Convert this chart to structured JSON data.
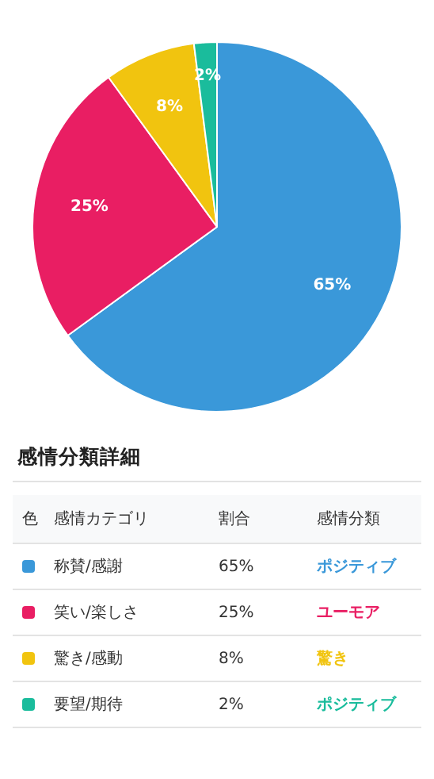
{
  "chart_data": {
    "type": "pie",
    "categories": [
      "称賛/感謝",
      "笑い/楽しさ",
      "驚き/感動",
      "要望/期待"
    ],
    "values": [
      65,
      25,
      8,
      2
    ],
    "colors": [
      "#3a98d9",
      "#e91e63",
      "#f1c40f",
      "#1abc9c"
    ],
    "value_labels": [
      "65%",
      "25%",
      "8%",
      "2%"
    ],
    "legend": "bottom",
    "annotations": [
      "感情分類詳細",
      "色",
      "感情カテゴリ",
      "割合",
      "感情分類",
      "ポジティブ",
      "ユーモア",
      "驚き",
      "ポジティブ"
    ]
  }
}
